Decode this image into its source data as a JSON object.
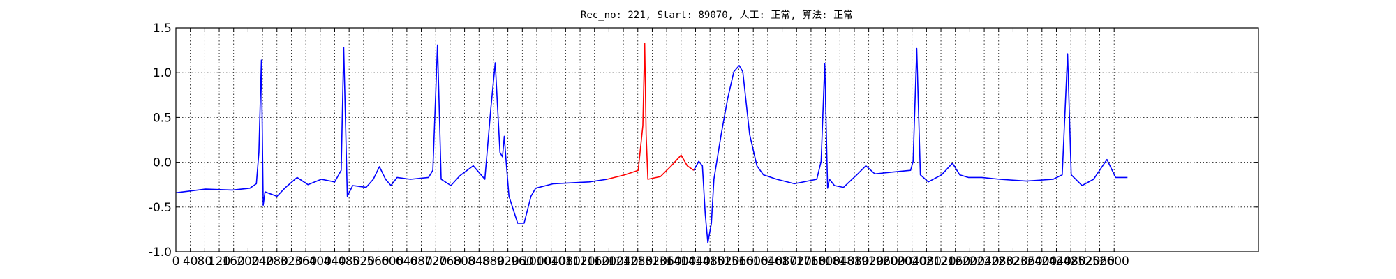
{
  "chart_data": {
    "type": "line",
    "title": "Rec_no: 221, Start: 89070, 人工: 正常, 算法: 正常",
    "x": [
      0,
      82,
      156,
      205,
      223,
      230,
      237,
      242,
      247,
      280,
      304,
      336,
      366,
      403,
      440,
      458,
      465,
      475,
      490,
      527,
      547,
      564,
      581,
      596,
      613,
      650,
      700,
      712,
      725,
      735,
      762,
      787,
      824,
      856,
      873,
      885,
      898,
      905,
      910,
      915,
      923,
      947,
      965,
      984,
      997,
      1046,
      1145,
      1195,
      1244,
      1281,
      1294,
      1299,
      1303,
      1308,
      1343,
      1373,
      1400,
      1417,
      1435,
      1449,
      1459,
      1467,
      1474,
      1484,
      1491,
      1511,
      1529,
      1546,
      1561,
      1571,
      1590,
      1610,
      1628,
      1665,
      1714,
      1776,
      1788,
      1798,
      1806,
      1811,
      1825,
      1850,
      1887,
      1912,
      1937,
      1986,
      2036,
      2043,
      2053,
      2063,
      2085,
      2122,
      2152,
      2172,
      2196,
      2233,
      2283,
      2357,
      2431,
      2456,
      2471,
      2481,
      2511,
      2543,
      2580,
      2604,
      2637
    ],
    "series": [
      {
        "color": "#0000ff",
        "values": [
          -0.34,
          -0.3,
          -0.31,
          -0.29,
          -0.24,
          0.11,
          1.14,
          -0.48,
          -0.33,
          -0.38,
          -0.28,
          -0.17,
          -0.25,
          -0.19,
          -0.22,
          -0.09,
          1.28,
          -0.38,
          -0.26,
          -0.28,
          -0.19,
          -0.05,
          -0.19,
          -0.26,
          -0.17,
          -0.19,
          -0.17,
          -0.09,
          1.31,
          -0.19,
          -0.26,
          -0.15,
          -0.04,
          -0.19,
          0.61,
          1.11,
          0.11,
          0.06,
          0.29,
          0.01,
          -0.38,
          -0.68,
          -0.68,
          -0.38,
          -0.29,
          -0.24,
          -0.22,
          -0.19,
          null,
          null,
          null,
          null,
          null,
          null,
          null,
          null,
          null,
          null,
          -0.09,
          0.01,
          -0.04,
          -0.58,
          -0.9,
          -0.68,
          -0.19,
          0.31,
          0.71,
          1.01,
          1.08,
          1.01,
          0.31,
          -0.04,
          -0.14,
          -0.19,
          -0.24,
          -0.19,
          0.01,
          1.1,
          -0.29,
          -0.19,
          -0.26,
          -0.28,
          -0.14,
          -0.04,
          -0.13,
          -0.11,
          -0.09,
          0.01,
          1.27,
          -0.14,
          -0.22,
          -0.14,
          -0.01,
          -0.14,
          -0.17,
          -0.17,
          -0.19,
          -0.21,
          -0.19,
          -0.14,
          1.21,
          -0.14,
          -0.26,
          -0.19,
          0.03,
          -0.17,
          -0.17
        ]
      },
      {
        "color": "#ff0000",
        "values": [
          null,
          null,
          null,
          null,
          null,
          null,
          null,
          null,
          null,
          null,
          null,
          null,
          null,
          null,
          null,
          null,
          null,
          null,
          null,
          null,
          null,
          null,
          null,
          null,
          null,
          null,
          null,
          null,
          null,
          null,
          null,
          null,
          null,
          null,
          null,
          null,
          null,
          null,
          null,
          null,
          null,
          null,
          null,
          null,
          null,
          null,
          null,
          -0.19,
          -0.14,
          -0.09,
          0.41,
          1.33,
          0.31,
          -0.19,
          -0.16,
          -0.04,
          0.08,
          -0.04,
          -0.09,
          null,
          null,
          null,
          null,
          null,
          null,
          null,
          null,
          null,
          null,
          null,
          null,
          null,
          null,
          null,
          null,
          null,
          null,
          null,
          null,
          null,
          null,
          null,
          null,
          null,
          null,
          null,
          null,
          null,
          null,
          null,
          null,
          null,
          null,
          null,
          null,
          null,
          null,
          null,
          null,
          null,
          null,
          null,
          null,
          null,
          null,
          null,
          null
        ]
      }
    ],
    "xlim": [
      0,
      3000
    ],
    "xticks": [
      0,
      40,
      80,
      120,
      160,
      200,
      240,
      280,
      320,
      360,
      400,
      440,
      480,
      520,
      560,
      600,
      640,
      680,
      720,
      760,
      800,
      840,
      880,
      920,
      960,
      1000,
      1040,
      1080,
      1120,
      1160,
      1200,
      1240,
      1280,
      1320,
      1360,
      1400,
      1440,
      1480,
      1520,
      1560,
      1600,
      1640,
      1680,
      1720,
      1760,
      1800,
      1840,
      1880,
      1920,
      1960,
      2000,
      2040,
      2080,
      2120,
      2160,
      2200,
      2240,
      2280,
      2320,
      2360,
      2400,
      2440,
      2480,
      2520,
      2560,
      2600
    ],
    "ylim": [
      -1,
      1.5
    ],
    "yticks": [
      {
        "value": -1,
        "label": "-1.0"
      },
      -0.5,
      {
        "value": 0,
        "label": "0.0"
      },
      0.5,
      {
        "value": 1,
        "label": "1.0"
      },
      1.5
    ],
    "grid": true
  }
}
